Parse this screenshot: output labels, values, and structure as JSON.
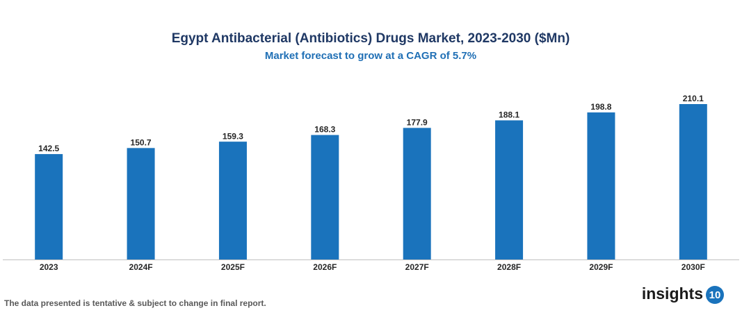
{
  "chart_data": {
    "type": "bar",
    "title": "Egypt Antibacterial (Antibiotics) Drugs Market, 2023-2030 ($Mn)",
    "subtitle": "Market forecast to grow at a CAGR of 5.7%",
    "categories": [
      "2023",
      "2024F",
      "2025F",
      "2026F",
      "2027F",
      "2028F",
      "2029F",
      "2030F"
    ],
    "values": [
      142.5,
      150.7,
      159.3,
      168.3,
      177.9,
      188.1,
      198.8,
      210.1
    ],
    "color": "#1a73bc",
    "note": "The data presented is tentative & subject to change in final report.",
    "logo": "insights",
    "logo_badge": "10"
  }
}
